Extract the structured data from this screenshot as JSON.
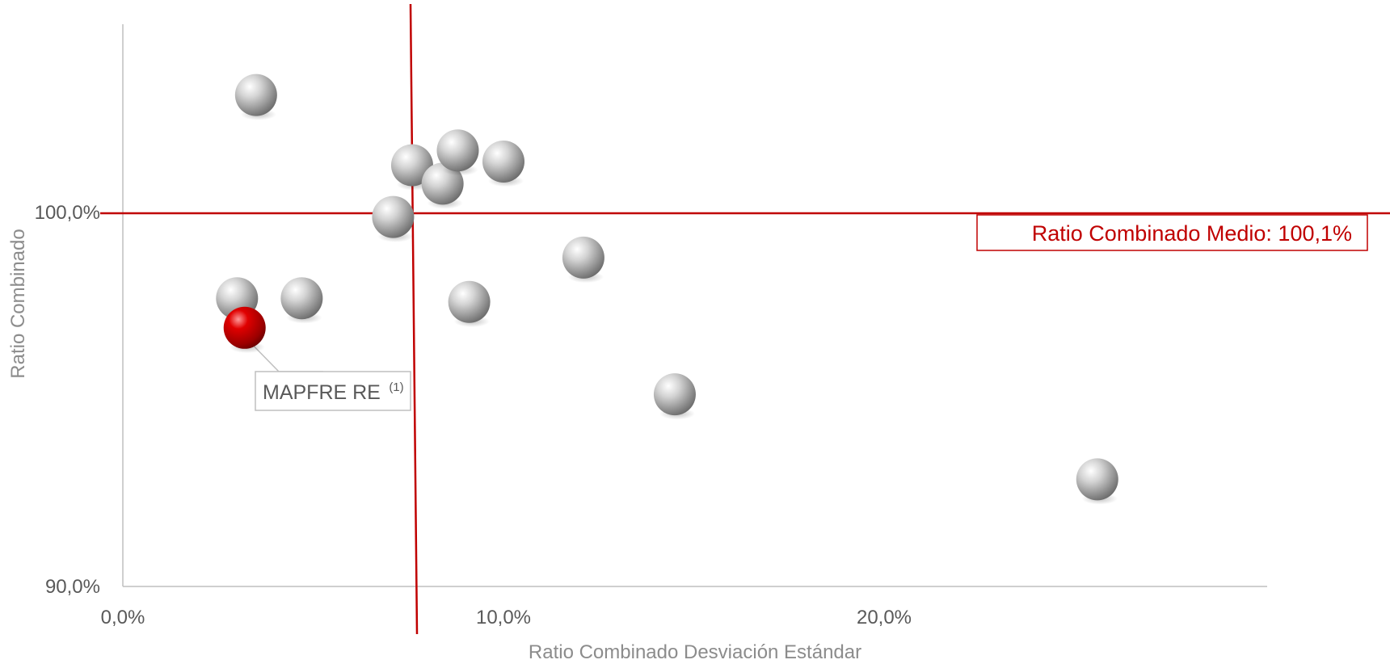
{
  "chart_data": {
    "type": "scatter",
    "xlabel": "Ratio Combinado Desviación Estándar",
    "ylabel": "Ratio Combinado",
    "xlim": [
      0,
      30
    ],
    "ylim": [
      90,
      105
    ],
    "x_ticks": [
      "0,0%",
      "10,0%",
      "20,0%"
    ],
    "y_ticks": [
      "90,0%",
      "100,0%"
    ],
    "x_tick_values": [
      0,
      10,
      20
    ],
    "y_tick_values": [
      90,
      100
    ],
    "grid": false,
    "reference_lines": {
      "horizontal": {
        "y": 100.1,
        "label": "Ratio Combinado Medio: 100,1%",
        "color": "#c00000"
      },
      "vertical": {
        "x": 7.7,
        "color": "#c00000"
      }
    },
    "series": [
      {
        "points": [
          {
            "x": 3.5,
            "y": 103.3
          },
          {
            "x": 7.6,
            "y": 101.4
          },
          {
            "x": 8.4,
            "y": 100.9
          },
          {
            "x": 8.8,
            "y": 101.8
          },
          {
            "x": 10.0,
            "y": 101.5
          },
          {
            "x": 7.1,
            "y": 100.0
          },
          {
            "x": 12.1,
            "y": 98.9
          },
          {
            "x": 3.0,
            "y": 97.8
          },
          {
            "x": 4.7,
            "y": 97.8
          },
          {
            "x": 9.1,
            "y": 97.7
          },
          {
            "x": 14.5,
            "y": 95.2
          },
          {
            "x": 25.6,
            "y": 92.9
          }
        ],
        "color": "#b4b4b4"
      },
      {
        "points": [
          {
            "x": 3.2,
            "y": 97.0
          }
        ],
        "color": "#c00000",
        "callout": {
          "label": "MAPFRE RE",
          "superscript": "(1)"
        }
      }
    ]
  }
}
